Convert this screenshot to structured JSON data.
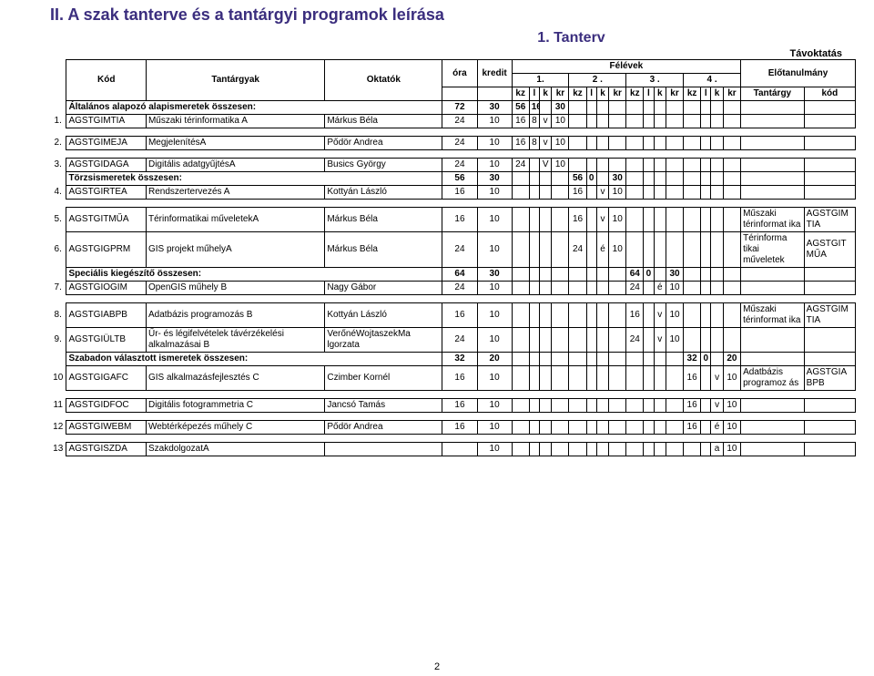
{
  "heading": "II. A szak tanterve és a tantárgyi programok leírása",
  "subheading": "1. Tanterv",
  "tavo": "Távoktatás",
  "cols": {
    "kod": "Kód",
    "tant": "Tantárgyak",
    "okt": "Oktatók",
    "ora": "óra",
    "kredit": "kredit",
    "felevek": "Félévek",
    "elot": "Előtanulmány",
    "f1": "1.",
    "f2": "2 .",
    "f3": "3 .",
    "f4": "4 .",
    "kz": "kz",
    "l": "l",
    "k": "k",
    "kr": "kr",
    "tant2": "Tantárgy",
    "kod2": "kód"
  },
  "groups": [
    {
      "label": "Általános alapozó alapismeretek összesen:",
      "ora": "72",
      "kredit": "30",
      "f1": [
        "56",
        "16",
        "",
        "30"
      ],
      "f2": [
        "",
        "",
        "",
        ""
      ],
      "f3": [
        "",
        "",
        "",
        ""
      ],
      "f4": [
        "",
        "",
        "",
        ""
      ]
    }
  ],
  "rows": [
    {
      "n": "1.",
      "kod": "AGSTGIMTIA",
      "t": "Műszaki térinformatika A",
      "o": "Márkus Béla",
      "ora": "24",
      "kr": "10",
      "f1": [
        "16",
        "8",
        "v",
        "10"
      ],
      "f2": [
        "",
        "",
        "",
        ""
      ],
      "f3": [
        "",
        "",
        "",
        ""
      ],
      "f4": [
        "",
        "",
        "",
        ""
      ],
      "et": "",
      "ek": ""
    },
    {
      "n": "2.",
      "kod": "AGSTGIMEJA",
      "t": "MegjelenítésA",
      "o": "Pődör Andrea",
      "ora": "24",
      "kr": "10",
      "f1": [
        "16",
        "8",
        "v",
        "10"
      ],
      "f2": [
        "",
        "",
        "",
        ""
      ],
      "f3": [
        "",
        "",
        "",
        ""
      ],
      "f4": [
        "",
        "",
        "",
        ""
      ],
      "et": "",
      "ek": "",
      "spacer": true
    },
    {
      "n": "3.",
      "kod": "AGSTGIDAGA",
      "t": "Digitális adatgyűjtésA",
      "o": "Busics György",
      "ora": "24",
      "kr": "10",
      "f1": [
        "24",
        "",
        "V",
        "10"
      ],
      "f2": [
        "",
        "",
        "",
        ""
      ],
      "f3": [
        "",
        "",
        "",
        ""
      ],
      "f4": [
        "",
        "",
        "",
        ""
      ],
      "et": "",
      "ek": "",
      "spacer": true
    }
  ],
  "group2": {
    "label": "Törzsismeretek összesen:",
    "ora": "56",
    "kredit": "30",
    "f1": [
      "",
      "",
      "",
      ""
    ],
    "f2": [
      "56",
      "0",
      "",
      "30"
    ],
    "f3": [
      "",
      "",
      "",
      ""
    ],
    "f4": [
      "",
      "",
      "",
      ""
    ]
  },
  "rows2": [
    {
      "n": "4.",
      "kod": "AGSTGIRTEA",
      "t": "Rendszertervezés A",
      "o": "Kottyán László",
      "ora": "16",
      "kr": "10",
      "f1": [
        "",
        "",
        "",
        ""
      ],
      "f2": [
        "16",
        "",
        "v",
        "10"
      ],
      "f3": [
        "",
        "",
        "",
        ""
      ],
      "f4": [
        "",
        "",
        "",
        ""
      ],
      "et": "",
      "ek": ""
    },
    {
      "n": "5.",
      "kod": "AGSTGITMŰA",
      "t": "Térinformatikai műveletekA",
      "o": "Márkus Béla",
      "ora": "16",
      "kr": "10",
      "f1": [
        "",
        "",
        "",
        ""
      ],
      "f2": [
        "16",
        "",
        "v",
        "10"
      ],
      "f3": [
        "",
        "",
        "",
        ""
      ],
      "f4": [
        "",
        "",
        "",
        ""
      ],
      "et": "Műszaki térinformat ika",
      "ek": "AGSTGIM TIA",
      "spacer": true
    },
    {
      "n": "6.",
      "kod": "AGSTGIGPRM",
      "t": "GIS projekt műhelyA",
      "o": "Márkus Béla",
      "ora": "24",
      "kr": "10",
      "f1": [
        "",
        "",
        "",
        ""
      ],
      "f2": [
        "24",
        "",
        "é",
        "10"
      ],
      "f3": [
        "",
        "",
        "",
        ""
      ],
      "f4": [
        "",
        "",
        "",
        ""
      ],
      "et": "Térinforma tikai műveletek",
      "ek": "AGSTGIT MŰA"
    }
  ],
  "group3": {
    "label": "Speciális kiegészítő összesen:",
    "ora": "64",
    "kredit": "30",
    "f1": [
      "",
      "",
      "",
      ""
    ],
    "f2": [
      "",
      "",
      "",
      ""
    ],
    "f3": [
      "64",
      "0",
      "",
      "30"
    ],
    "f4": [
      "",
      "",
      "",
      ""
    ]
  },
  "rows3": [
    {
      "n": "7.",
      "kod": "AGSTGIOGIM",
      "t": "OpenGIS műhely B",
      "o": "Nagy Gábor",
      "ora": "24",
      "kr": "10",
      "f1": [
        "",
        "",
        "",
        ""
      ],
      "f2": [
        "",
        "",
        "",
        ""
      ],
      "f3": [
        "24",
        "",
        "é",
        "10"
      ],
      "f4": [
        "",
        "",
        "",
        ""
      ],
      "et": "",
      "ek": ""
    },
    {
      "n": "8.",
      "kod": "AGSTGIABPB",
      "t": "Adatbázis programozás B",
      "o": "Kottyán László",
      "ora": "16",
      "kr": "10",
      "f1": [
        "",
        "",
        "",
        ""
      ],
      "f2": [
        "",
        "",
        "",
        ""
      ],
      "f3": [
        "16",
        "",
        "v",
        "10"
      ],
      "f4": [
        "",
        "",
        "",
        ""
      ],
      "et": "Műszaki térinformat ika",
      "ek": "AGSTGIM TIA",
      "spacer": true
    },
    {
      "n": "9.",
      "kod": "AGSTGIÜLTB",
      "t": "Űr- és légifelvételek távérzékelési alkalmazásai B",
      "o": "VerőnéWojtaszekMa lgorzata",
      "ora": "24",
      "kr": "10",
      "f1": [
        "",
        "",
        "",
        ""
      ],
      "f2": [
        "",
        "",
        "",
        ""
      ],
      "f3": [
        "24",
        "",
        "v",
        "10"
      ],
      "f4": [
        "",
        "",
        "",
        ""
      ],
      "et": "",
      "ek": ""
    }
  ],
  "group4": {
    "label": "Szabadon választott ismeretek összesen:",
    "ora": "32",
    "kredit": "20",
    "f1": [
      "",
      "",
      "",
      ""
    ],
    "f2": [
      "",
      "",
      "",
      ""
    ],
    "f3": [
      "",
      "",
      "",
      ""
    ],
    "f4": [
      "32",
      "0",
      "",
      "20"
    ]
  },
  "rows4": [
    {
      "n": "10",
      "kod": "AGSTGIGAFC",
      "t": "GIS alkalmazásfejlesztés C",
      "o": "Czimber Kornél",
      "ora": "16",
      "kr": "10",
      "f1": [
        "",
        "",
        "",
        ""
      ],
      "f2": [
        "",
        "",
        "",
        ""
      ],
      "f3": [
        "",
        "",
        "",
        ""
      ],
      "f4": [
        "16",
        "",
        "v",
        "10"
      ],
      "et": "Adatbázis programoz ás",
      "ek": "AGSTGIA BPB"
    },
    {
      "n": "11",
      "kod": "AGSTGIDFOC",
      "t": "Digitális fotogrammetria C",
      "o": "Jancsó Tamás",
      "ora": "16",
      "kr": "10",
      "f1": [
        "",
        "",
        "",
        ""
      ],
      "f2": [
        "",
        "",
        "",
        ""
      ],
      "f3": [
        "",
        "",
        "",
        ""
      ],
      "f4": [
        "16",
        "",
        "v",
        "10"
      ],
      "et": "",
      "ek": "",
      "spacer": true
    },
    {
      "n": "12",
      "kod": "AGSTGIWEBM",
      "t": "Webtérképezés műhely C",
      "o": "Pődör Andrea",
      "ora": "16",
      "kr": "10",
      "f1": [
        "",
        "",
        "",
        ""
      ],
      "f2": [
        "",
        "",
        "",
        ""
      ],
      "f3": [
        "",
        "",
        "",
        ""
      ],
      "f4": [
        "16",
        "",
        "é",
        "10"
      ],
      "et": "",
      "ek": "",
      "spacer": true
    },
    {
      "n": "13",
      "kod": "AGSTGISZDA",
      "t": "SzakdolgozatA",
      "o": "",
      "ora": "",
      "kr": "10",
      "f1": [
        "",
        "",
        "",
        ""
      ],
      "f2": [
        "",
        "",
        "",
        ""
      ],
      "f3": [
        "",
        "",
        "",
        ""
      ],
      "f4": [
        "",
        "",
        "a",
        "10"
      ],
      "et": "",
      "ek": "",
      "spacer": true
    }
  ],
  "pagenum": "2"
}
